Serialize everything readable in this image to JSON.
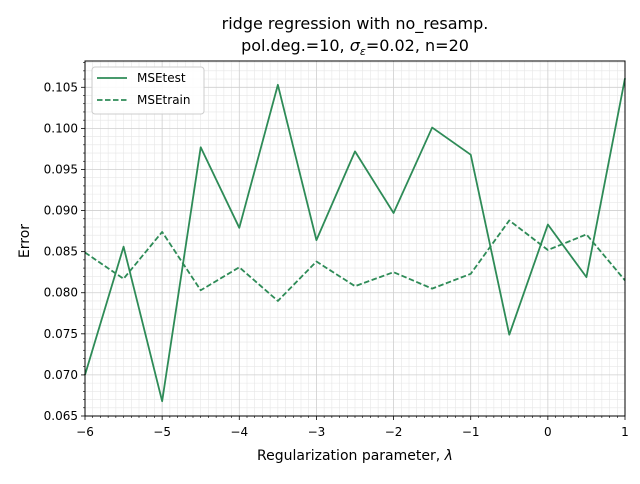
{
  "chart_data": {
    "type": "line",
    "title_line1": "ridge regression with no_resamp.",
    "title_line2": {
      "prefix": "pol.deg.=10,  ",
      "sigma_symbol": "σ",
      "sigma_sub": "ε",
      "suffix": "=0.02,  n=20"
    },
    "xlabel": "Regularization parameter, ",
    "xlabel_symbol": "λ",
    "ylabel": "Error",
    "xlim": [
      -6,
      1
    ],
    "ylim": [
      0.065,
      0.1082
    ],
    "xticks": [
      -6,
      -5,
      -4,
      -3,
      -2,
      -1,
      0,
      1
    ],
    "xtick_labels": [
      "−6",
      "−5",
      "−4",
      "−3",
      "−2",
      "−1",
      "0",
      "1"
    ],
    "yticks": [
      0.065,
      0.07,
      0.075,
      0.08,
      0.085,
      0.09,
      0.095,
      0.1,
      0.105
    ],
    "ytick_labels": [
      "0.065",
      "0.070",
      "0.075",
      "0.080",
      "0.085",
      "0.090",
      "0.095",
      "0.100",
      "0.105"
    ],
    "grid": true,
    "minor_grid": true,
    "legend_position": "upper left",
    "color": "#2e8b57",
    "x": [
      -6,
      -5.5,
      -5,
      -4.5,
      -4,
      -3.5,
      -3,
      -2.5,
      -2,
      -1.5,
      -1,
      -0.5,
      0,
      0.5,
      1
    ],
    "series": [
      {
        "name": "MSEtest",
        "style": "solid",
        "values": [
          0.07,
          0.0856,
          0.0668,
          0.0977,
          0.0879,
          0.1053,
          0.0864,
          0.0972,
          0.0897,
          0.1001,
          0.0968,
          0.0749,
          0.0883,
          0.0819,
          0.1061
        ]
      },
      {
        "name": "MSEtrain",
        "style": "dashed",
        "values": [
          0.0849,
          0.0817,
          0.0874,
          0.0803,
          0.0831,
          0.079,
          0.0838,
          0.0808,
          0.0825,
          0.0805,
          0.0823,
          0.0888,
          0.0852,
          0.0871,
          0.0815
        ]
      }
    ]
  }
}
